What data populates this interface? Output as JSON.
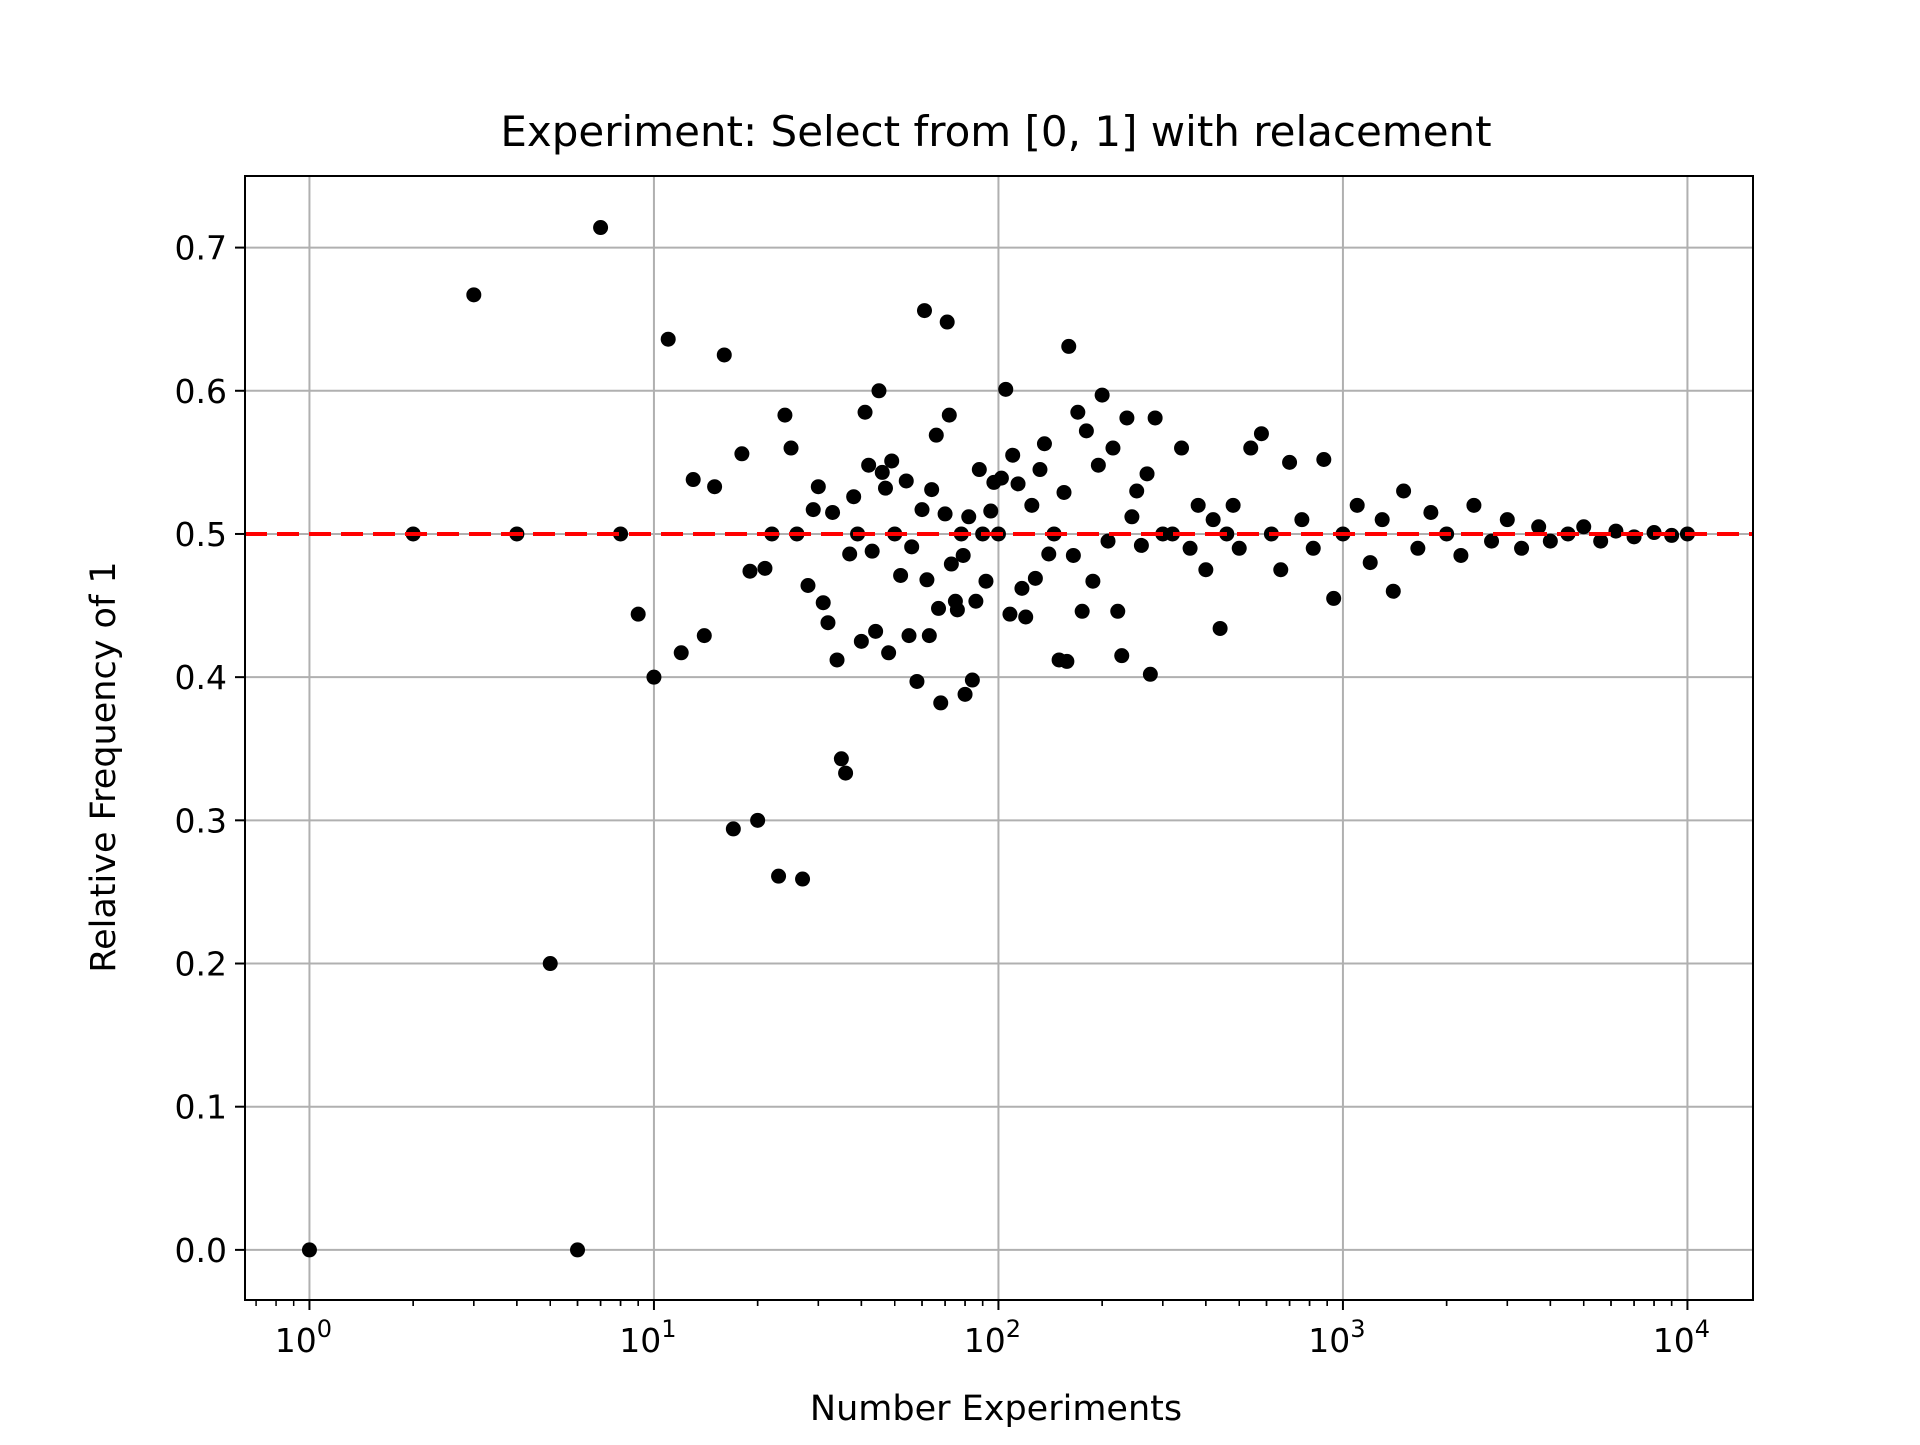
{
  "chart_data": {
    "type": "scatter",
    "title": "Experiment: Select from [0, 1] with relacement",
    "xlabel": "Number Experiments",
    "ylabel": "Relative Frequency of 1",
    "xscale": "log",
    "xlim": [
      0.65,
      15500
    ],
    "ylim": [
      -0.035,
      0.75
    ],
    "grid": true,
    "x_ticks": [
      {
        "base": "10",
        "exp": "0",
        "value": 1
      },
      {
        "base": "10",
        "exp": "1",
        "value": 10
      },
      {
        "base": "10",
        "exp": "2",
        "value": 100
      },
      {
        "base": "10",
        "exp": "3",
        "value": 1000
      },
      {
        "base": "10",
        "exp": "4",
        "value": 10000
      }
    ],
    "y_ticks": [
      {
        "label": "0.0",
        "value": 0.0
      },
      {
        "label": "0.1",
        "value": 0.1
      },
      {
        "label": "0.2",
        "value": 0.2
      },
      {
        "label": "0.3",
        "value": 0.3
      },
      {
        "label": "0.4",
        "value": 0.4
      },
      {
        "label": "0.5",
        "value": 0.5
      },
      {
        "label": "0.6",
        "value": 0.6
      },
      {
        "label": "0.7",
        "value": 0.7
      }
    ],
    "reference_line": {
      "y": 0.5,
      "style": "dashed",
      "color": "#ff0000"
    },
    "marker_color": "#000000",
    "points": [
      [
        1,
        0.0
      ],
      [
        2,
        0.5
      ],
      [
        3,
        0.667
      ],
      [
        4,
        0.5
      ],
      [
        5,
        0.2
      ],
      [
        6,
        0.0
      ],
      [
        7,
        0.714
      ],
      [
        8,
        0.5
      ],
      [
        9,
        0.444
      ],
      [
        10,
        0.4
      ],
      [
        11,
        0.636
      ],
      [
        12,
        0.417
      ],
      [
        13,
        0.538
      ],
      [
        14,
        0.429
      ],
      [
        15,
        0.533
      ],
      [
        16,
        0.625
      ],
      [
        17,
        0.294
      ],
      [
        18,
        0.556
      ],
      [
        19,
        0.474
      ],
      [
        20,
        0.3
      ],
      [
        21,
        0.476
      ],
      [
        22,
        0.5
      ],
      [
        23,
        0.261
      ],
      [
        24,
        0.583
      ],
      [
        25,
        0.56
      ],
      [
        26,
        0.5
      ],
      [
        27,
        0.259
      ],
      [
        28,
        0.464
      ],
      [
        29,
        0.517
      ],
      [
        30,
        0.533
      ],
      [
        31,
        0.452
      ],
      [
        32,
        0.438
      ],
      [
        33,
        0.515
      ],
      [
        34,
        0.412
      ],
      [
        35,
        0.343
      ],
      [
        36,
        0.333
      ],
      [
        37,
        0.486
      ],
      [
        38,
        0.526
      ],
      [
        39,
        0.5
      ],
      [
        40,
        0.425
      ],
      [
        41,
        0.585
      ],
      [
        42,
        0.548
      ],
      [
        43,
        0.488
      ],
      [
        44,
        0.432
      ],
      [
        45,
        0.6
      ],
      [
        46,
        0.543
      ],
      [
        47,
        0.532
      ],
      [
        48,
        0.417
      ],
      [
        49,
        0.551
      ],
      [
        50,
        0.5
      ],
      [
        52,
        0.471
      ],
      [
        54,
        0.537
      ],
      [
        55,
        0.429
      ],
      [
        56,
        0.491
      ],
      [
        58,
        0.397
      ],
      [
        60,
        0.517
      ],
      [
        61,
        0.656
      ],
      [
        62,
        0.468
      ],
      [
        63,
        0.429
      ],
      [
        64,
        0.531
      ],
      [
        66,
        0.569
      ],
      [
        67,
        0.448
      ],
      [
        68,
        0.382
      ],
      [
        70,
        0.514
      ],
      [
        71,
        0.648
      ],
      [
        72,
        0.583
      ],
      [
        73,
        0.479
      ],
      [
        75,
        0.453
      ],
      [
        76,
        0.447
      ],
      [
        78,
        0.5
      ],
      [
        79,
        0.485
      ],
      [
        80,
        0.388
      ],
      [
        82,
        0.512
      ],
      [
        84,
        0.398
      ],
      [
        86,
        0.453
      ],
      [
        88,
        0.545
      ],
      [
        90,
        0.5
      ],
      [
        92,
        0.467
      ],
      [
        95,
        0.516
      ],
      [
        97,
        0.536
      ],
      [
        100,
        0.5
      ],
      [
        102,
        0.539
      ],
      [
        105,
        0.601
      ],
      [
        108,
        0.444
      ],
      [
        110,
        0.555
      ],
      [
        114,
        0.535
      ],
      [
        117,
        0.462
      ],
      [
        120,
        0.442
      ],
      [
        125,
        0.52
      ],
      [
        128,
        0.469
      ],
      [
        132,
        0.545
      ],
      [
        136,
        0.563
      ],
      [
        140,
        0.486
      ],
      [
        145,
        0.5
      ],
      [
        150,
        0.412
      ],
      [
        155,
        0.529
      ],
      [
        158,
        0.411
      ],
      [
        160,
        0.631
      ],
      [
        165,
        0.485
      ],
      [
        170,
        0.585
      ],
      [
        175,
        0.446
      ],
      [
        180,
        0.572
      ],
      [
        188,
        0.467
      ],
      [
        195,
        0.548
      ],
      [
        200,
        0.597
      ],
      [
        208,
        0.495
      ],
      [
        215,
        0.56
      ],
      [
        222,
        0.446
      ],
      [
        228,
        0.415
      ],
      [
        236,
        0.581
      ],
      [
        244,
        0.512
      ],
      [
        252,
        0.53
      ],
      [
        260,
        0.492
      ],
      [
        270,
        0.542
      ],
      [
        276,
        0.402
      ],
      [
        285,
        0.581
      ],
      [
        300,
        0.5
      ],
      [
        320,
        0.5
      ],
      [
        340,
        0.56
      ],
      [
        360,
        0.49
      ],
      [
        380,
        0.52
      ],
      [
        400,
        0.475
      ],
      [
        420,
        0.51
      ],
      [
        440,
        0.434
      ],
      [
        460,
        0.5
      ],
      [
        480,
        0.52
      ],
      [
        500,
        0.49
      ],
      [
        540,
        0.56
      ],
      [
        580,
        0.57
      ],
      [
        620,
        0.5
      ],
      [
        660,
        0.475
      ],
      [
        700,
        0.55
      ],
      [
        760,
        0.51
      ],
      [
        820,
        0.49
      ],
      [
        880,
        0.552
      ],
      [
        940,
        0.455
      ],
      [
        1000,
        0.5
      ],
      [
        1100,
        0.52
      ],
      [
        1200,
        0.48
      ],
      [
        1300,
        0.51
      ],
      [
        1400,
        0.46
      ],
      [
        1500,
        0.53
      ],
      [
        1650,
        0.49
      ],
      [
        1800,
        0.515
      ],
      [
        2000,
        0.5
      ],
      [
        2200,
        0.485
      ],
      [
        2400,
        0.52
      ],
      [
        2700,
        0.495
      ],
      [
        3000,
        0.51
      ],
      [
        3300,
        0.49
      ],
      [
        3700,
        0.505
      ],
      [
        4000,
        0.495
      ],
      [
        4500,
        0.5
      ],
      [
        5000,
        0.505
      ],
      [
        5600,
        0.495
      ],
      [
        6200,
        0.502
      ],
      [
        7000,
        0.498
      ],
      [
        8000,
        0.501
      ],
      [
        9000,
        0.499
      ],
      [
        10000,
        0.5
      ]
    ]
  }
}
